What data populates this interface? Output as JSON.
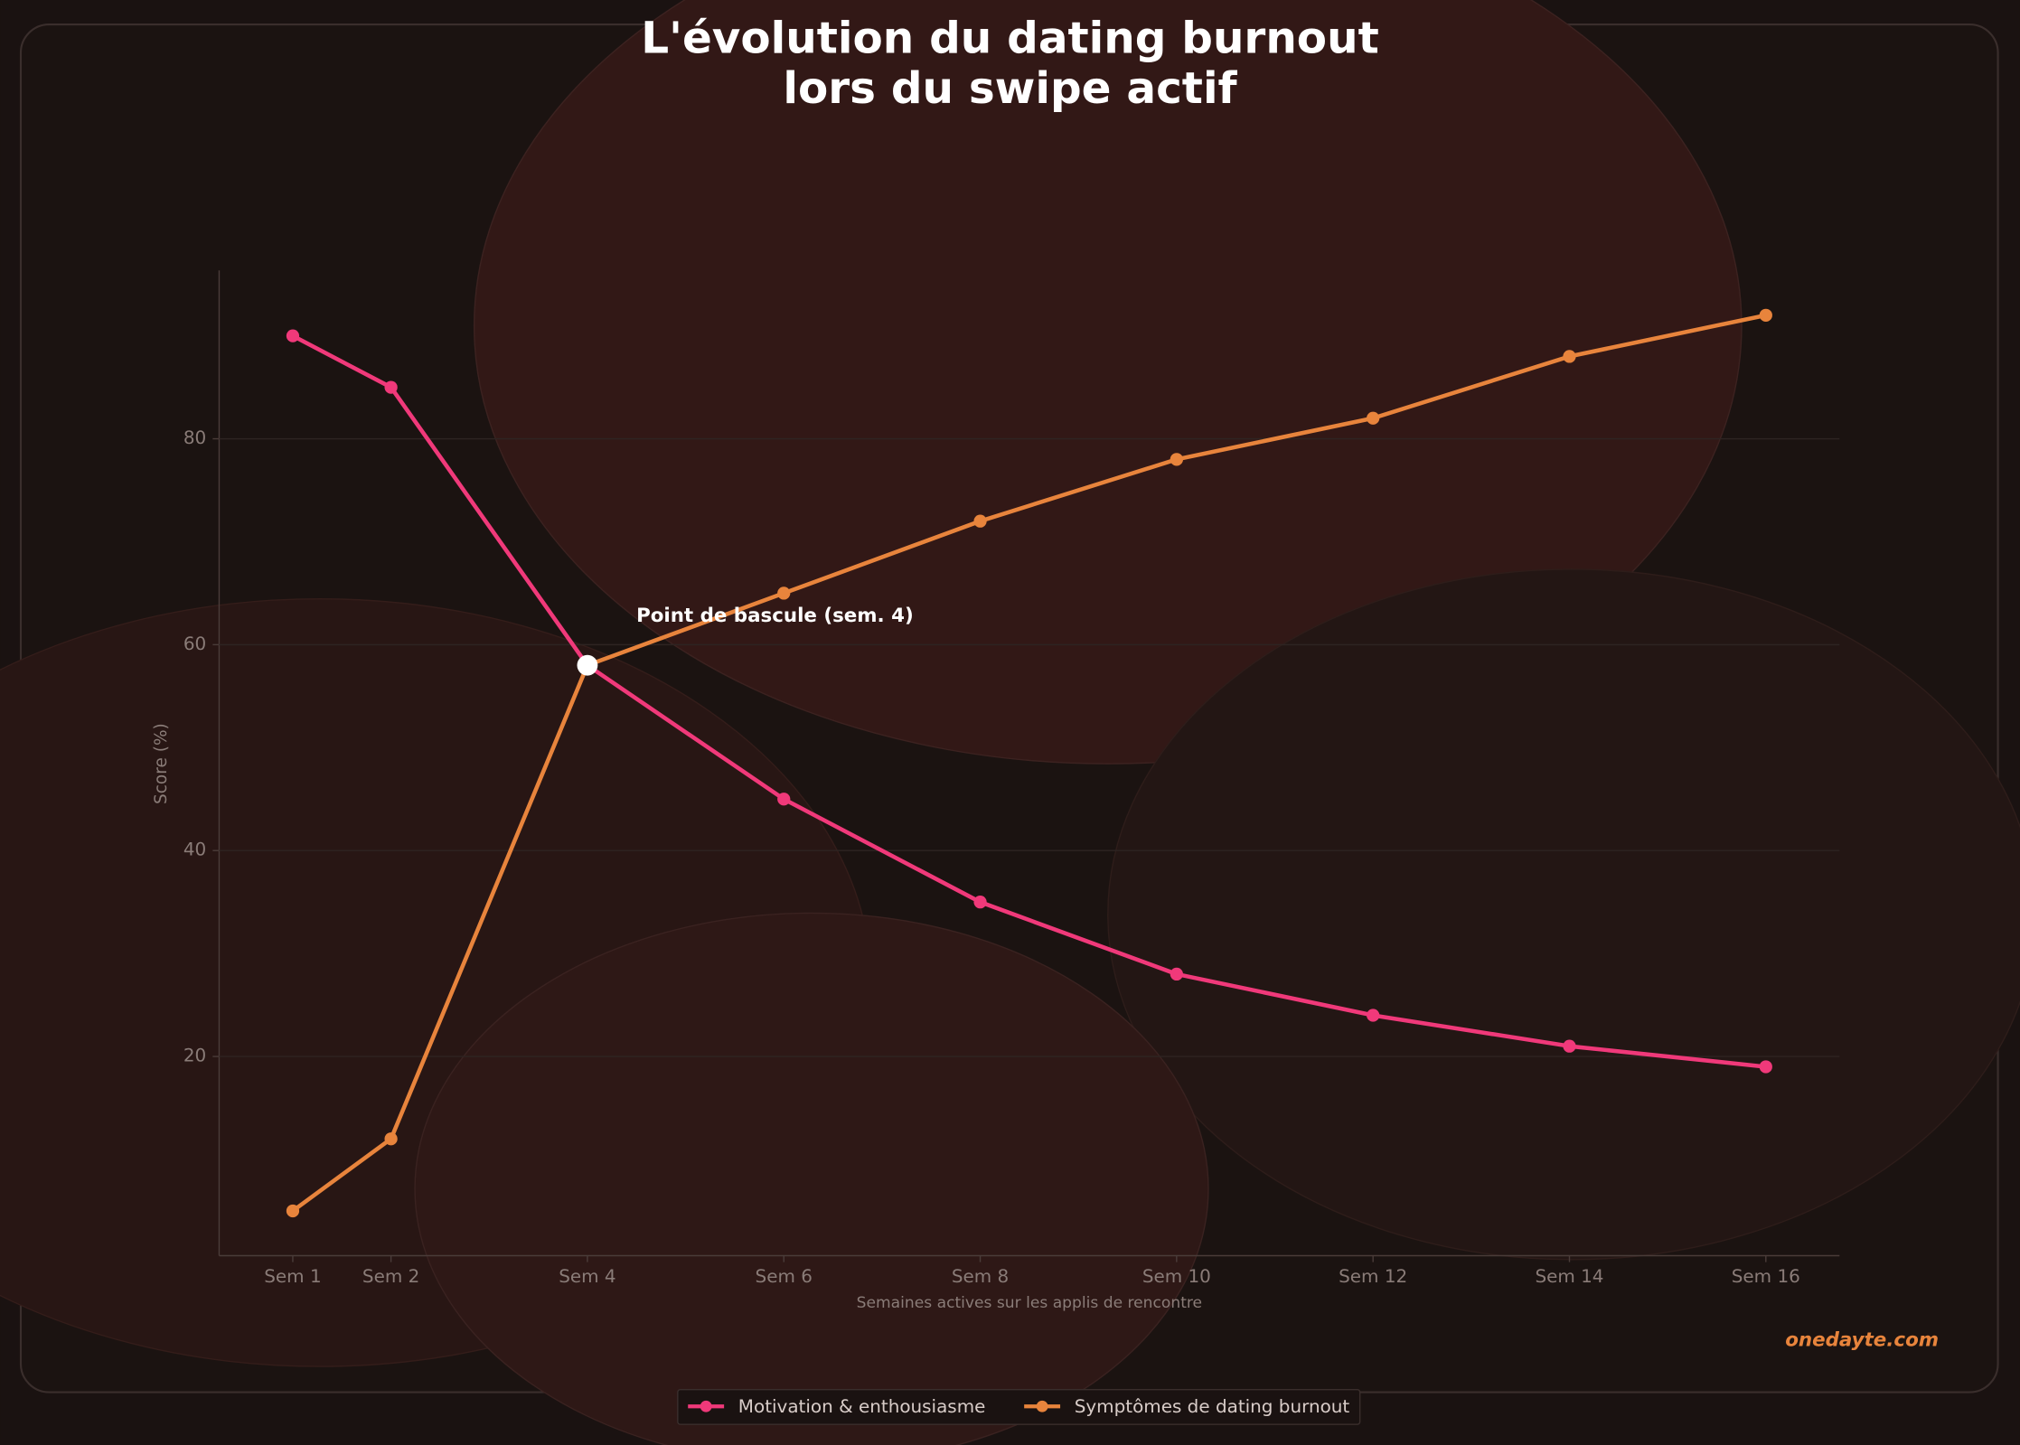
{
  "chart_data": {
    "type": "line",
    "title": [
      "L'évolution du dating burnout",
      "lors du swipe actif"
    ],
    "x_label": "Semaines actives sur les applis de rencontre",
    "y_label": "Score (%)",
    "annotation": "Point de bascule (sem. 4)",
    "watermark": "onedayte.com",
    "x": [
      1,
      2,
      4,
      6,
      8,
      10,
      12,
      14,
      16
    ],
    "xlim": [
      0.25,
      16.75
    ],
    "xticks": [
      {
        "value": 1,
        "label": "Sem 1"
      },
      {
        "value": 2,
        "label": "Sem 2"
      },
      {
        "value": 4,
        "label": "Sem 4"
      },
      {
        "value": 6,
        "label": "Sem 6"
      },
      {
        "value": 8,
        "label": "Sem 8"
      },
      {
        "value": 10,
        "label": "Sem 10"
      },
      {
        "value": 12,
        "label": "Sem 12"
      },
      {
        "value": 14,
        "label": "Sem 14"
      },
      {
        "value": 16,
        "label": "Sem 16"
      }
    ],
    "ylim": [
      0.65,
      96.35
    ],
    "yticks": [
      20,
      40,
      60,
      80
    ],
    "grid": true,
    "legend": "bottom",
    "series": [
      {
        "name": "Motivation & enthousiasme",
        "color": "#f0397a",
        "values": [
          90,
          85,
          58,
          45,
          35,
          28,
          24,
          21,
          19
        ]
      },
      {
        "name": "Symptômes de dating burnout",
        "color": "#e8843c",
        "values": [
          5,
          12,
          58,
          65,
          72,
          78,
          82,
          88,
          92
        ]
      }
    ]
  }
}
